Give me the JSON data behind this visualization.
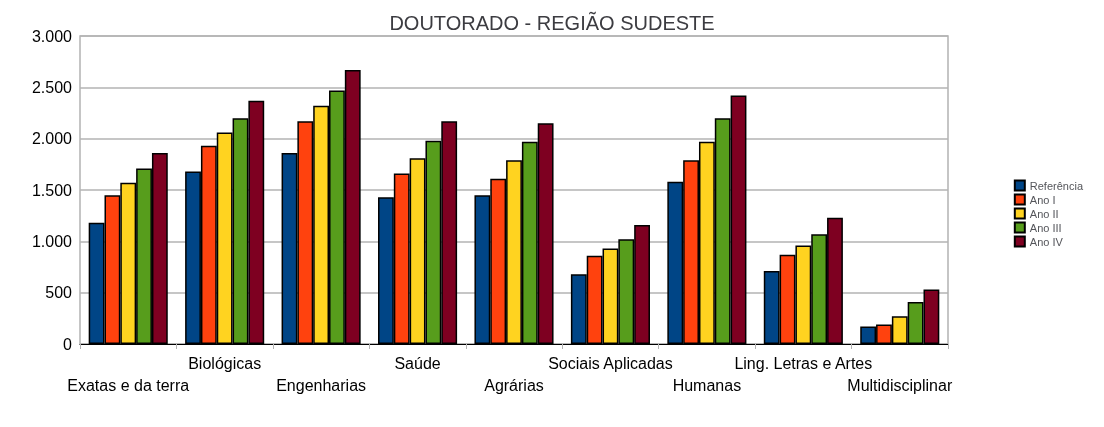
{
  "chart_data": {
    "type": "bar",
    "title": "DOUTORADO - REGIÃO SUDESTE",
    "categories": [
      "Exatas e da terra",
      "Biológicas",
      "Engenharias",
      "Saúde",
      "Agrárias",
      "Sociais Aplicadas",
      "Humanas",
      "Ling. Letras e Artes",
      "Multidisciplinar"
    ],
    "series": [
      {
        "name": "Referência",
        "color": "#004586",
        "values": [
          1180,
          1680,
          1860,
          1430,
          1450,
          680,
          1580,
          710,
          170
        ]
      },
      {
        "name": "Ano I",
        "color": "#ff420e",
        "values": [
          1450,
          1930,
          2170,
          1660,
          1610,
          860,
          1790,
          870,
          190
        ]
      },
      {
        "name": "Ano II",
        "color": "#ffd320",
        "values": [
          1570,
          2060,
          2320,
          1810,
          1790,
          930,
          1970,
          960,
          270
        ]
      },
      {
        "name": "Ano III",
        "color": "#579d1c",
        "values": [
          1710,
          2200,
          2470,
          1980,
          1970,
          1020,
          2200,
          1070,
          410
        ]
      },
      {
        "name": "Ano IV",
        "color": "#7e0021",
        "values": [
          1860,
          2370,
          2670,
          2170,
          2150,
          1160,
          2420,
          1230,
          530
        ]
      }
    ],
    "ylim": [
      0,
      3000
    ],
    "yticks": [
      {
        "value": 0,
        "label": "0"
      },
      {
        "value": 500,
        "label": "500"
      },
      {
        "value": 1000,
        "label": "1.000"
      },
      {
        "value": 1500,
        "label": "1.500"
      },
      {
        "value": 2000,
        "label": "2.000"
      },
      {
        "value": 2500,
        "label": "2.500"
      },
      {
        "value": 3000,
        "label": "3.000"
      }
    ],
    "grid": "y",
    "legend": "right"
  }
}
